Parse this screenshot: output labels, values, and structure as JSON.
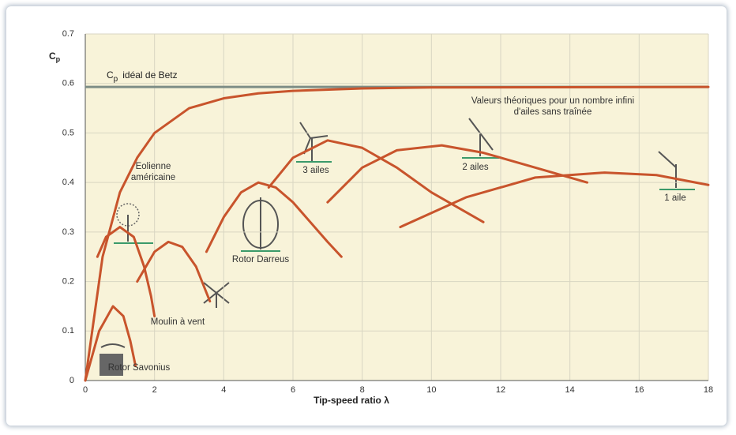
{
  "chart_data": {
    "type": "line",
    "x_label": "Tip-speed ratio λ",
    "y_label": {
      "main": "C",
      "sub": "p"
    },
    "betz": {
      "value": 0.593,
      "label_main": "C",
      "label_sub": "p",
      "label_rest": "idéal de Betz",
      "color": "#7d8d86"
    },
    "xlim": [
      0,
      18
    ],
    "ylim": [
      0,
      0.7
    ],
    "xticks": [
      0,
      2,
      4,
      6,
      8,
      10,
      12,
      14,
      16,
      18
    ],
    "yticks": [
      0,
      0.1,
      0.2,
      0.3,
      0.4,
      0.5,
      0.6,
      0.7
    ],
    "grid": true,
    "series": [
      {
        "name": [
          "Valeurs théoriques pour un nombre infini",
          "d'ailes sans traînée"
        ],
        "color": "#c8542c",
        "x": [
          0,
          0.5,
          1,
          1.5,
          2,
          3,
          4,
          5,
          6,
          8,
          10,
          18
        ],
        "values": [
          0,
          0.25,
          0.38,
          0.45,
          0.5,
          0.55,
          0.57,
          0.58,
          0.585,
          0.59,
          0.592,
          0.593
        ]
      },
      {
        "name": [
          "Rotor Savonius"
        ],
        "color": "#c8542c",
        "x": [
          0,
          0.4,
          0.8,
          1.1,
          1.3,
          1.45
        ],
        "values": [
          0,
          0.1,
          0.15,
          0.13,
          0.08,
          0.03
        ]
      },
      {
        "name": [
          "Eolienne",
          "américaine"
        ],
        "color": "#c8542c",
        "x": [
          0.35,
          0.6,
          1,
          1.4,
          1.7,
          1.9,
          2
        ],
        "values": [
          0.25,
          0.29,
          0.31,
          0.29,
          0.23,
          0.17,
          0.13
        ]
      },
      {
        "name": [
          "Moulin à vent"
        ],
        "color": "#c8542c",
        "x": [
          1.5,
          2,
          2.4,
          2.8,
          3.2,
          3.6
        ],
        "values": [
          0.2,
          0.26,
          0.28,
          0.27,
          0.23,
          0.16
        ]
      },
      {
        "name": [
          "Rotor Darreus"
        ],
        "color": "#c8542c",
        "x": [
          3.5,
          4,
          4.5,
          5,
          5.5,
          6,
          6.5,
          7,
          7.4
        ],
        "values": [
          0.26,
          0.33,
          0.38,
          0.4,
          0.39,
          0.36,
          0.32,
          0.28,
          0.25
        ]
      },
      {
        "name": [
          "3 ailes"
        ],
        "color": "#c8542c",
        "x": [
          5.3,
          6,
          7,
          8,
          9,
          10,
          11.5
        ],
        "values": [
          0.39,
          0.45,
          0.485,
          0.47,
          0.43,
          0.38,
          0.32
        ]
      },
      {
        "name": [
          "2 ailes"
        ],
        "color": "#c8542c",
        "x": [
          7,
          8,
          9,
          10.3,
          11.5,
          13,
          14.5
        ],
        "values": [
          0.36,
          0.43,
          0.465,
          0.475,
          0.46,
          0.43,
          0.4
        ]
      },
      {
        "name": [
          "1 aile"
        ],
        "color": "#c8542c",
        "x": [
          9.1,
          11,
          13,
          15,
          16.5,
          18
        ],
        "values": [
          0.31,
          0.37,
          0.41,
          0.42,
          0.415,
          0.395
        ]
      }
    ]
  }
}
